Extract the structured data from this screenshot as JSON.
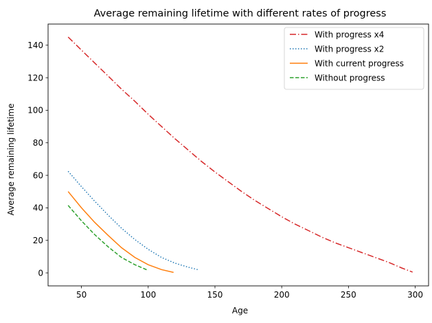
{
  "chart_data": {
    "type": "line",
    "title": "Average remaining lifetime with different rates of progress",
    "xlabel": "Age",
    "ylabel": "Average remaining lifetime",
    "xlim": [
      25,
      310
    ],
    "ylim": [
      -8,
      153
    ],
    "xticks": [
      50,
      100,
      150,
      200,
      250,
      300
    ],
    "yticks": [
      0,
      20,
      40,
      60,
      80,
      100,
      120,
      140
    ],
    "grid": false,
    "legend_position": "top-right",
    "series": [
      {
        "name": "With progress x4",
        "color": "#d62728",
        "dash": "dashdot",
        "x": [
          40,
          50,
          60,
          70,
          80,
          90,
          100,
          110,
          120,
          130,
          140,
          150,
          160,
          170,
          180,
          190,
          200,
          210,
          220,
          230,
          240,
          250,
          260,
          270,
          280,
          290,
          298
        ],
        "y": [
          145,
          137,
          129,
          121,
          113,
          105.5,
          97.5,
          90,
          82.5,
          75.5,
          68.5,
          62,
          56,
          50,
          44.5,
          39.5,
          34.5,
          30,
          26,
          22,
          18.5,
          15.5,
          12.5,
          9.5,
          6.5,
          3,
          0.5
        ]
      },
      {
        "name": "With progress x2",
        "color": "#1f77b4",
        "dash": "dotted",
        "x": [
          40,
          50,
          60,
          70,
          80,
          90,
          100,
          110,
          120,
          130,
          137
        ],
        "y": [
          62.5,
          53,
          44,
          35.5,
          27.5,
          20.5,
          14.5,
          9.5,
          6,
          3.5,
          2
        ]
      },
      {
        "name": "With current progress",
        "color": "#ff7f0e",
        "dash": "solid",
        "x": [
          40,
          50,
          60,
          70,
          80,
          90,
          100,
          110,
          119
        ],
        "y": [
          50,
          40,
          31,
          23,
          15.5,
          9.5,
          5,
          2,
          0.3
        ]
      },
      {
        "name": "Without progress",
        "color": "#2ca02c",
        "dash": "dashed",
        "x": [
          40,
          50,
          60,
          70,
          80,
          90,
          100
        ],
        "y": [
          41.5,
          32,
          23.5,
          16,
          9.5,
          5,
          1.5
        ]
      }
    ]
  }
}
